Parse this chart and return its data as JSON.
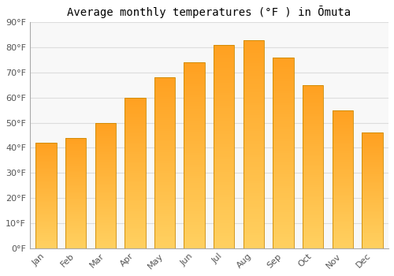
{
  "title": "Average monthly temperatures (°F ) in Ōmuta",
  "months": [
    "Jan",
    "Feb",
    "Mar",
    "Apr",
    "May",
    "Jun",
    "Jul",
    "Aug",
    "Sep",
    "Oct",
    "Nov",
    "Dec"
  ],
  "values": [
    42,
    44,
    50,
    60,
    68,
    74,
    81,
    83,
    76,
    65,
    55,
    46
  ],
  "ylim": [
    0,
    90
  ],
  "yticks": [
    0,
    10,
    20,
    30,
    40,
    50,
    60,
    70,
    80,
    90
  ],
  "ytick_labels": [
    "0°F",
    "10°F",
    "20°F",
    "30°F",
    "40°F",
    "50°F",
    "60°F",
    "70°F",
    "80°F",
    "90°F"
  ],
  "bar_color_bottom": "#FFD060",
  "bar_color_top": "#FFA020",
  "bar_edge_color": "#CC8800",
  "background_color": "#ffffff",
  "plot_bg_color": "#f8f8f8",
  "grid_color": "#dddddd",
  "title_fontsize": 10,
  "tick_fontsize": 8,
  "bar_width": 0.7
}
